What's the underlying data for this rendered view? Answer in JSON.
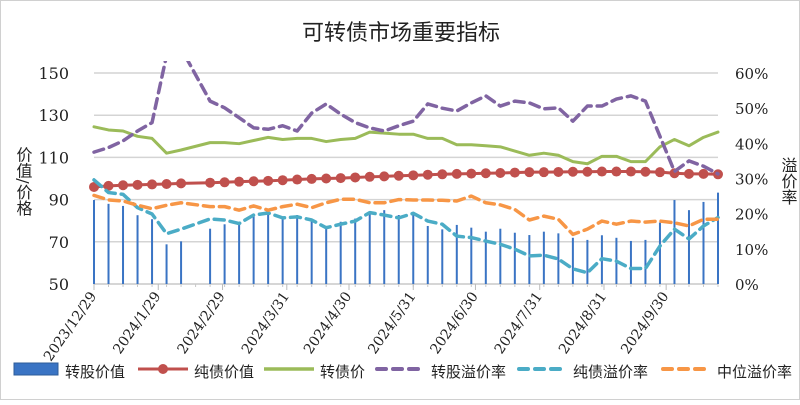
{
  "chart_data": {
    "type": "bar+line",
    "title": "可转债市场重要指标",
    "ylabel_left": "价值/价格",
    "ylabel_right": "溢价率",
    "ylim_left": [
      50,
      150
    ],
    "yticks_left": [
      50,
      70,
      90,
      110,
      130,
      150
    ],
    "ylim_right": [
      0,
      60
    ],
    "yticks_right": [
      "0%",
      "10%",
      "20%",
      "30%",
      "40%",
      "50%",
      "60%"
    ],
    "xlim": [
      "2023-12-29",
      "2024-10-25"
    ],
    "xticks": [
      {
        "date": "2023-12-29",
        "label": "2023/12/29"
      },
      {
        "date": "2024-01-29",
        "label": "2024/1/29"
      },
      {
        "date": "2024-02-29",
        "label": "2024/2/29"
      },
      {
        "date": "2024-03-31",
        "label": "2024/3/31"
      },
      {
        "date": "2024-04-30",
        "label": "2024/4/30"
      },
      {
        "date": "2024-05-31",
        "label": "2024/5/31"
      },
      {
        "date": "2024-06-30",
        "label": "2024/6/30"
      },
      {
        "date": "2024-07-31",
        "label": "2024/7/31"
      },
      {
        "date": "2024-08-31",
        "label": "2024/8/31"
      },
      {
        "date": "2024-09-30",
        "label": "2024/9/30"
      }
    ],
    "grid": true,
    "legend_position": "bottom",
    "x": [
      "2023-12-29",
      "2024-01-05",
      "2024-01-12",
      "2024-01-19",
      "2024-01-26",
      "2024-02-02",
      "2024-02-09",
      "2024-02-16",
      "2024-02-23",
      "2024-03-01",
      "2024-03-08",
      "2024-03-15",
      "2024-03-22",
      "2024-03-29",
      "2024-04-05",
      "2024-04-12",
      "2024-04-19",
      "2024-04-26",
      "2024-05-03",
      "2024-05-10",
      "2024-05-17",
      "2024-05-24",
      "2024-05-31",
      "2024-06-07",
      "2024-06-14",
      "2024-06-21",
      "2024-06-28",
      "2024-07-05",
      "2024-07-12",
      "2024-07-19",
      "2024-07-26",
      "2024-08-02",
      "2024-08-09",
      "2024-08-16",
      "2024-08-23",
      "2024-08-30",
      "2024-09-06",
      "2024-09-13",
      "2024-09-20",
      "2024-09-27",
      "2024-10-04",
      "2024-10-11",
      "2024-10-18",
      "2024-10-25"
    ],
    "series": [
      {
        "name": "转股价值",
        "type": "bar",
        "axis": "left",
        "color": "#3a74c4",
        "values": [
          89.8,
          88,
          87,
          82.6,
          80.7,
          68.8,
          70.2,
          null,
          76.2,
          78.3,
          78.8,
          82.2,
          83,
          81.9,
          82.7,
          79.9,
          77.5,
          79.5,
          81,
          84.3,
          85,
          82.7,
          83.8,
          77.5,
          75.9,
          78,
          76.7,
          74.8,
          76.2,
          74.3,
          73.2,
          74.8,
          74,
          71.9,
          70.9,
          73.1,
          71.9,
          70.4,
          70.9,
          79.1,
          89.8,
          85,
          88.9,
          93.3
        ]
      },
      {
        "name": "纯债价值",
        "type": "line-marker",
        "axis": "left",
        "color": "#c0504d",
        "values": [
          96,
          96.5,
          96.8,
          97,
          97.2,
          97.4,
          97.7,
          null,
          98,
          98.2,
          98.5,
          98.7,
          98.9,
          99.2,
          99.5,
          99.8,
          100,
          100.2,
          100.5,
          100.8,
          101,
          101.3,
          101.5,
          101.8,
          102,
          102.2,
          102.3,
          102.5,
          102.6,
          102.8,
          103,
          103,
          103.1,
          103.2,
          103.2,
          103.3,
          103.3,
          103.3,
          103.2,
          103,
          102.5,
          102.2,
          102.2,
          102
        ]
      },
      {
        "name": "转债价",
        "type": "line",
        "axis": "left",
        "color": "#9bbb59",
        "values": [
          124.5,
          123,
          122.5,
          120,
          119,
          112,
          113.5,
          null,
          117,
          117,
          116.5,
          118,
          119.5,
          118.5,
          119,
          119,
          117.5,
          118.5,
          119,
          122,
          121.5,
          121,
          121,
          119,
          119,
          116,
          116,
          115.5,
          115,
          113,
          111,
          112,
          111,
          108,
          107,
          110.5,
          110.5,
          108,
          108,
          115,
          118.5,
          115.5,
          119.5,
          122
        ]
      },
      {
        "name": "转股溢价率",
        "type": "dashed",
        "axis": "right",
        "color": "#8064a2",
        "values": [
          37.5,
          38.8,
          40.7,
          43.5,
          45.9,
          65,
          67,
          null,
          52,
          50.1,
          47.3,
          44.4,
          44,
          45,
          43.5,
          48.6,
          51.2,
          48.3,
          45.9,
          44.4,
          43.5,
          45,
          46.3,
          51.2,
          50,
          49.2,
          51.5,
          53.5,
          50.6,
          52,
          51.5,
          49.8,
          50.1,
          46.3,
          50.6,
          50.6,
          52.6,
          53.5,
          52,
          42,
          32,
          35,
          33.5,
          31.3
        ]
      },
      {
        "name": "纯债溢价率",
        "type": "dashed",
        "axis": "right",
        "color": "#4bacc6",
        "values": [
          29.6,
          26,
          25.5,
          21.7,
          19.9,
          14.3,
          15.6,
          null,
          18.5,
          18.2,
          17.2,
          19.6,
          20.2,
          18.8,
          19.1,
          18.2,
          16,
          17,
          17.9,
          20.3,
          19.6,
          18.8,
          20.1,
          17.9,
          17,
          13.6,
          13.2,
          12.2,
          11.3,
          9.9,
          8,
          8.2,
          7.1,
          4.3,
          3.2,
          7.2,
          6.5,
          4.4,
          4.4,
          10.8,
          15.6,
          12.8,
          16.5,
          18.9
        ]
      },
      {
        "name": "中位溢价率",
        "type": "dashed",
        "axis": "right",
        "color": "#f79646",
        "values": [
          25.2,
          23.9,
          23.6,
          22.4,
          21.4,
          22.4,
          23.1,
          null,
          22,
          22,
          21,
          22.2,
          21,
          22,
          22.7,
          21.7,
          23.1,
          24.1,
          24.1,
          23.1,
          23.1,
          24,
          23.9,
          23.9,
          23.8,
          23.6,
          25,
          23.1,
          22.5,
          21.2,
          18.2,
          19.3,
          18.4,
          14.1,
          15.6,
          17.9,
          17,
          17.9,
          17.6,
          17.9,
          17.4,
          16.5,
          18.4,
          18.4
        ]
      }
    ]
  }
}
